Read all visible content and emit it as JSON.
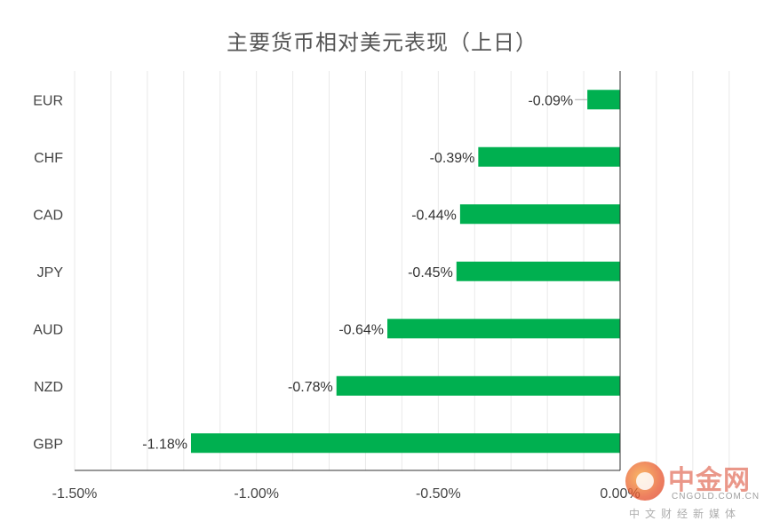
{
  "chart_data": {
    "type": "bar",
    "orientation": "horizontal",
    "title": "主要货币相对美元表现（上日）",
    "categories": [
      "EUR",
      "CHF",
      "CAD",
      "JPY",
      "AUD",
      "NZD",
      "GBP"
    ],
    "values": [
      -0.09,
      -0.39,
      -0.44,
      -0.45,
      -0.64,
      -0.78,
      -1.18
    ],
    "data_labels": [
      "-0.09%",
      "-0.39%",
      "-0.44%",
      "-0.45%",
      "-0.64%",
      "-0.78%",
      "-1.18%"
    ],
    "xlim": [
      -1.5,
      0.0
    ],
    "x_ticks": [
      -1.5,
      -1.0,
      -0.5,
      0.0
    ],
    "x_tick_labels": [
      "-1.50%",
      "-1.00%",
      "-0.50%",
      "0.00%"
    ],
    "grid": true,
    "bar_color": "#00b050",
    "xlabel": "",
    "ylabel": ""
  },
  "watermark": {
    "brand": "中金网",
    "domain": "CNGOLD.COM.CN",
    "slogan": "中文财经新媒体"
  }
}
